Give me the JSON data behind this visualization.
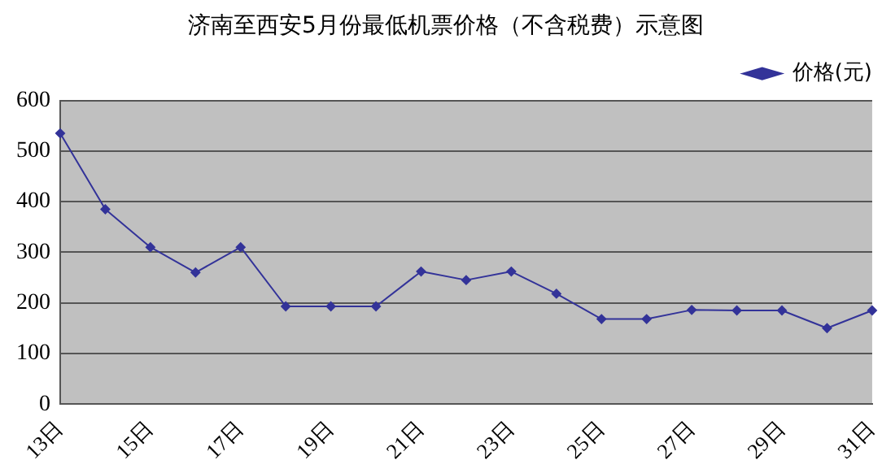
{
  "chart_data": {
    "type": "line",
    "title": "济南至西安5月份最低机票价格（不含税费）示意图",
    "categories": [
      "13日",
      null,
      "15日",
      null,
      "17日",
      null,
      "19日",
      null,
      "21日",
      null,
      "23日",
      null,
      "25日",
      null,
      "27日",
      null,
      "29日",
      null,
      "31日"
    ],
    "series": [
      {
        "name": "价格(元)",
        "color": "#333399",
        "values": [
          535,
          385,
          310,
          260,
          310,
          193,
          193,
          193,
          262,
          245,
          262,
          218,
          168,
          168,
          186,
          185,
          185,
          150,
          185
        ]
      }
    ],
    "ylim": [
      0,
      600
    ],
    "yticks": [
      0,
      100,
      200,
      300,
      400,
      500,
      600
    ],
    "grid": "y",
    "legend": "top right",
    "marker": "diamond",
    "line_style": "solid"
  }
}
